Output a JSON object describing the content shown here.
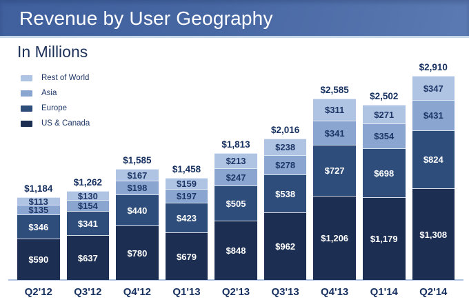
{
  "header": {
    "title": "Revenue by User Geography"
  },
  "subtitle": "In Millions",
  "colors": {
    "header_gradient_start": "#3f5f9d",
    "header_gradient_end": "#5b79b2",
    "divider": "#c8d8eb",
    "axis_line": "#aec4e0",
    "text_navy": "#1e3667"
  },
  "chart_data": {
    "type": "bar",
    "stacked": true,
    "title": "Revenue by User Geography",
    "subtitle": "In Millions",
    "value_prefix": "$",
    "legend_position": "top-left",
    "grid": false,
    "ylim": [
      0,
      2910
    ],
    "categories": [
      "Q2'12",
      "Q3'12",
      "Q4'12",
      "Q1'13",
      "Q2'13",
      "Q3'13",
      "Q4'13",
      "Q1'14",
      "Q2'14"
    ],
    "series": [
      {
        "name": "US & Canada",
        "color": "#1c2e51",
        "label_color": "#ffffff",
        "values": [
          590,
          637,
          780,
          679,
          848,
          962,
          1206,
          1179,
          1308
        ]
      },
      {
        "name": "Europe",
        "color": "#2e4d7b",
        "label_color": "#ffffff",
        "values": [
          346,
          341,
          440,
          423,
          505,
          538,
          727,
          698,
          824
        ]
      },
      {
        "name": "Asia",
        "color": "#8aa6d0",
        "label_color": "#1e3667",
        "values": [
          135,
          154,
          198,
          197,
          247,
          278,
          341,
          354,
          431
        ]
      },
      {
        "name": "Rest of World",
        "color": "#afc4e2",
        "label_color": "#1e3667",
        "values": [
          113,
          130,
          167,
          159,
          213,
          238,
          311,
          271,
          347
        ]
      }
    ],
    "totals": [
      1184,
      1262,
      1585,
      1458,
      1813,
      2016,
      2585,
      2502,
      2910
    ]
  }
}
